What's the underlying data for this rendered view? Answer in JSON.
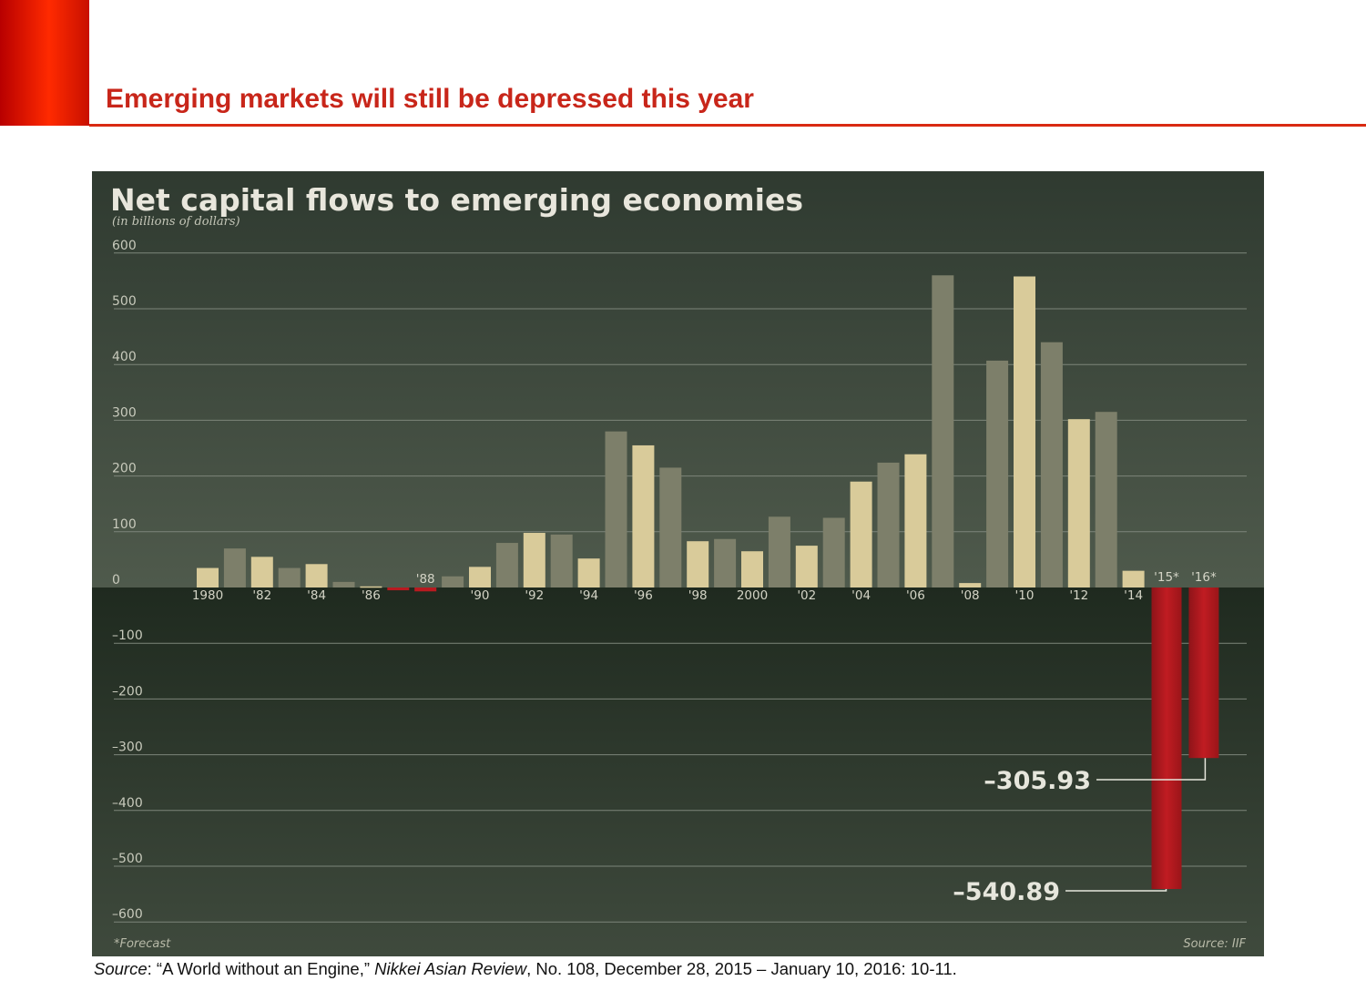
{
  "slide": {
    "title": "Emerging markets will still be depressed this year",
    "source_label": "Source",
    "source_part1": ": “A World without an Engine,” ",
    "source_journal": "Nikkei Asian Review",
    "source_part2": ", No. 108, December 28, 2015 – January 10, 2016: 10-11."
  },
  "colors": {
    "accent_red": "#c8261a",
    "bar_gray": "#7d7f6a",
    "bar_cream": "#d9cb9a",
    "bar_negative": "#b81a20",
    "chart_bg_top": "#3e4a3e",
    "chart_bg_bottom": "#243024"
  },
  "chart_data": {
    "type": "bar",
    "title": "Net capital flows to emerging economies",
    "subtitle": "(in billions of dollars)",
    "ylim": [
      -600,
      600
    ],
    "yticks": [
      600,
      500,
      400,
      300,
      200,
      100,
      0,
      -100,
      -200,
      -300,
      -400,
      -500,
      -600
    ],
    "ytick_labels": [
      "600",
      "500",
      "400",
      "300",
      "200",
      "100",
      "0",
      "–100",
      "–200",
      "–300",
      "–400",
      "–500",
      "–600"
    ],
    "grid": true,
    "categories": [
      "1980",
      "1981",
      "1982",
      "1983",
      "1984",
      "1985",
      "1986",
      "1987",
      "1988",
      "1989",
      "1990",
      "1991",
      "1992",
      "1993",
      "1994",
      "1995",
      "1996",
      "1997",
      "1998",
      "1999",
      "2000",
      "2001",
      "2002",
      "2003",
      "2004",
      "2005",
      "2006",
      "2007",
      "2008",
      "2009",
      "2010",
      "2011",
      "2012",
      "2013",
      "2014",
      "2015",
      "2016"
    ],
    "x_tick_labels": [
      "1980",
      "",
      "'82",
      "",
      "'84",
      "",
      "'86",
      "",
      "'88",
      "",
      "'90",
      "",
      "'92",
      "",
      "'94",
      "",
      "'96",
      "",
      "'98",
      "",
      "2000",
      "",
      "'02",
      "",
      "'04",
      "",
      "'06",
      "",
      "'08",
      "",
      "'10",
      "",
      "'12",
      "",
      "'14",
      "'15*",
      "'16*"
    ],
    "values": [
      35,
      70,
      55,
      35,
      42,
      10,
      2,
      -5,
      -7,
      20,
      37,
      80,
      98,
      95,
      52,
      280,
      255,
      215,
      83,
      87,
      65,
      127,
      75,
      125,
      190,
      224,
      239,
      560,
      8,
      407,
      558,
      440,
      302,
      315,
      30,
      -540.89,
      -305.93
    ],
    "forecast_years": [
      "2015",
      "2016"
    ],
    "annotations": [
      {
        "category": "2016",
        "label": "–305.93"
      },
      {
        "category": "2015",
        "label": "–540.89"
      }
    ],
    "footnote": "*Forecast",
    "credit": "Source: IIF"
  }
}
